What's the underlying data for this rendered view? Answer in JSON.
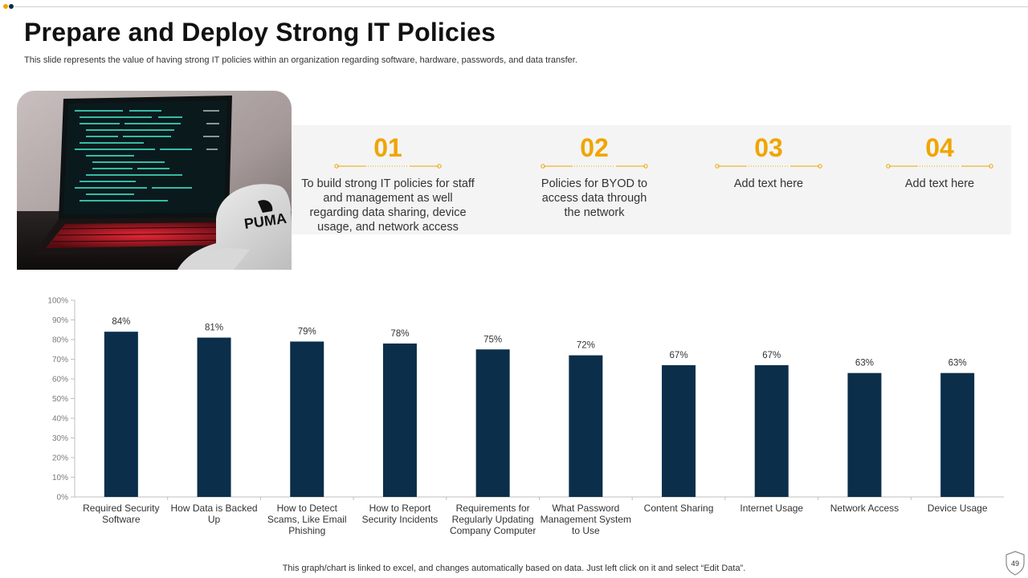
{
  "slide": {
    "title": "Prepare and Deploy Strong IT Policies",
    "subtitle": "This slide represents the value of having strong IT policies within an organization regarding software, hardware, passwords, and data transfer.",
    "footnote": "This graph/chart is linked to excel,  and changes automatically based on data. Just left click on it and select “Edit Data”.",
    "page_number": "49",
    "accent_color": "#f0a500",
    "bar_color": "#0b2e4a"
  },
  "photo": {
    "brand_text": "PUMA"
  },
  "features": [
    {
      "number": "01",
      "lines": [
        "To build strong IT policies for staff",
        "and management as well",
        "regarding data sharing, device",
        "usage, and network access"
      ]
    },
    {
      "number": "02",
      "lines": [
        "Policies for BYOD to",
        "access data through",
        "the network"
      ]
    },
    {
      "number": "03",
      "lines": [
        "Add text here"
      ]
    },
    {
      "number": "04",
      "lines": [
        "Add text here"
      ]
    }
  ],
  "chart_data": {
    "type": "bar",
    "categories": [
      [
        "Required Security",
        "Software"
      ],
      [
        "How Data is Backed",
        "Up"
      ],
      [
        "How to Detect",
        "Scams, Like Email",
        "Phishing"
      ],
      [
        "How to Report",
        "Security Incidents"
      ],
      [
        "Requirements for",
        "Regularly Updating",
        "Company Computer"
      ],
      [
        "What Password",
        "Management System",
        "to Use"
      ],
      [
        "Content Sharing"
      ],
      [
        "Internet Usage"
      ],
      [
        "Network Access"
      ],
      [
        "Device Usage"
      ]
    ],
    "values": [
      84,
      81,
      79,
      78,
      75,
      72,
      67,
      67,
      63,
      63
    ],
    "value_labels": [
      "84%",
      "81%",
      "79%",
      "78%",
      "75%",
      "72%",
      "67%",
      "67%",
      "63%",
      "63%"
    ],
    "y_ticks": [
      "0%",
      "10%",
      "20%",
      "30%",
      "40%",
      "50%",
      "60%",
      "70%",
      "80%",
      "90%",
      "100%"
    ],
    "ylim": [
      0,
      100
    ],
    "title": "",
    "xlabel": "",
    "ylabel": "",
    "grid": false,
    "legend": "none"
  }
}
